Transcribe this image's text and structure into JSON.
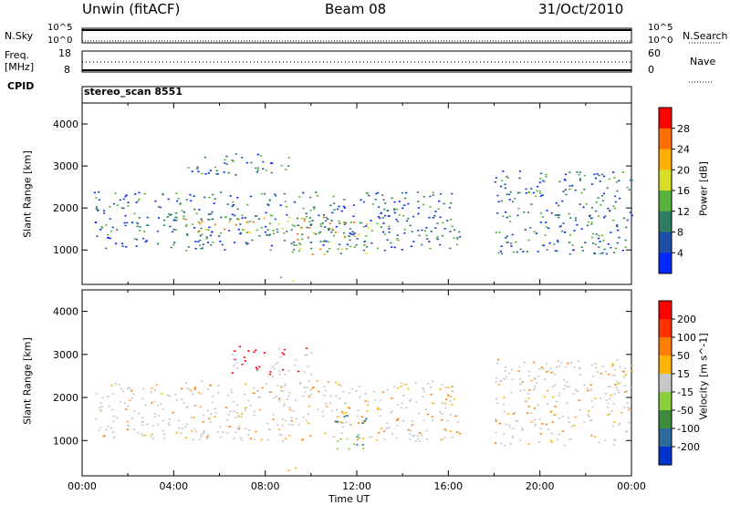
{
  "header": {
    "station": "Unwin (fitACF)",
    "beam": "Beam 08",
    "date": "31/Oct/2010"
  },
  "status_panels": {
    "nsky_label": "N.Sky",
    "nsky_ticks": [
      "10^5",
      "10^0"
    ],
    "nsearch_label": "N.Search",
    "freq_label": "Freq.",
    "freq_unit": "[MHz]",
    "freq_ticks": [
      "18",
      "8"
    ],
    "nave_label": "Nave",
    "nave_ticks": [
      "60",
      "0"
    ],
    "cpid_label": "CPID",
    "cpid_value": "stereo_scan 8551"
  },
  "chart_data": [
    {
      "type": "heatmap",
      "title": "",
      "xlabel": "",
      "ylabel": "Slant Range [km]",
      "xlim": [
        "00:00",
        "24:00"
      ],
      "ylim": [
        180,
        4500
      ],
      "yticks": [
        "1000",
        "2000",
        "3000",
        "4000"
      ],
      "colorbar": {
        "label": "Power [dB]",
        "ticks": [
          "4",
          "8",
          "12",
          "16",
          "20",
          "24",
          "28"
        ],
        "colors": [
          "#0028ff",
          "#1f4ea8",
          "#2f7e64",
          "#58b33c",
          "#d9dc28",
          "#ffb000",
          "#ff7000",
          "#ff0000"
        ]
      },
      "bands": [
        {
          "t": [
            0.5,
            16.5
          ],
          "r": [
            1000,
            2400
          ],
          "level": "low"
        },
        {
          "t": [
            4.5,
            9.0
          ],
          "r": [
            2800,
            3300
          ],
          "level": "low"
        },
        {
          "t": [
            4.0,
            12.5
          ],
          "r": [
            1400,
            1800
          ],
          "level": "high"
        },
        {
          "t": [
            9.0,
            12.5
          ],
          "r": [
            900,
            1400
          ],
          "level": "high"
        },
        {
          "t": [
            8.5,
            9.5
          ],
          "r": [
            250,
            380
          ],
          "level": "high"
        },
        {
          "t": [
            18.0,
            24.0
          ],
          "r": [
            900,
            2900
          ],
          "level": "low"
        }
      ]
    },
    {
      "type": "heatmap",
      "title": "",
      "xlabel": "Time UT",
      "ylabel": "Slant Range [km]",
      "xlim": [
        "00:00",
        "24:00"
      ],
      "ylim": [
        180,
        4500
      ],
      "xticks": [
        "00:00",
        "04:00",
        "08:00",
        "12:00",
        "16:00",
        "20:00",
        "00:00"
      ],
      "yticks": [
        "1000",
        "2000",
        "3000",
        "4000"
      ],
      "colorbar": {
        "label": "Velocity [m s^-1]",
        "ticks": [
          "200",
          "100",
          "50",
          "15",
          "-15",
          "-50",
          "-100",
          "-200"
        ],
        "colors": [
          "#0033cc",
          "#2a6a9c",
          "#3c8c3c",
          "#8ccf3c",
          "#c8c8c8",
          "#ffb400",
          "#ff7d00",
          "#ff3200",
          "#ff0000"
        ]
      },
      "bands": [
        {
          "t": [
            0.5,
            16.5
          ],
          "r": [
            1000,
            2400
          ],
          "level": "grey"
        },
        {
          "t": [
            6.5,
            10.0
          ],
          "r": [
            2500,
            3200
          ],
          "level": "red"
        },
        {
          "t": [
            11.0,
            12.5
          ],
          "r": [
            800,
            1600
          ],
          "level": "green"
        },
        {
          "t": [
            8.5,
            9.5
          ],
          "r": [
            250,
            380
          ],
          "level": "orange"
        },
        {
          "t": [
            18.0,
            24.0
          ],
          "r": [
            900,
            2900
          ],
          "level": "grey"
        }
      ]
    }
  ]
}
